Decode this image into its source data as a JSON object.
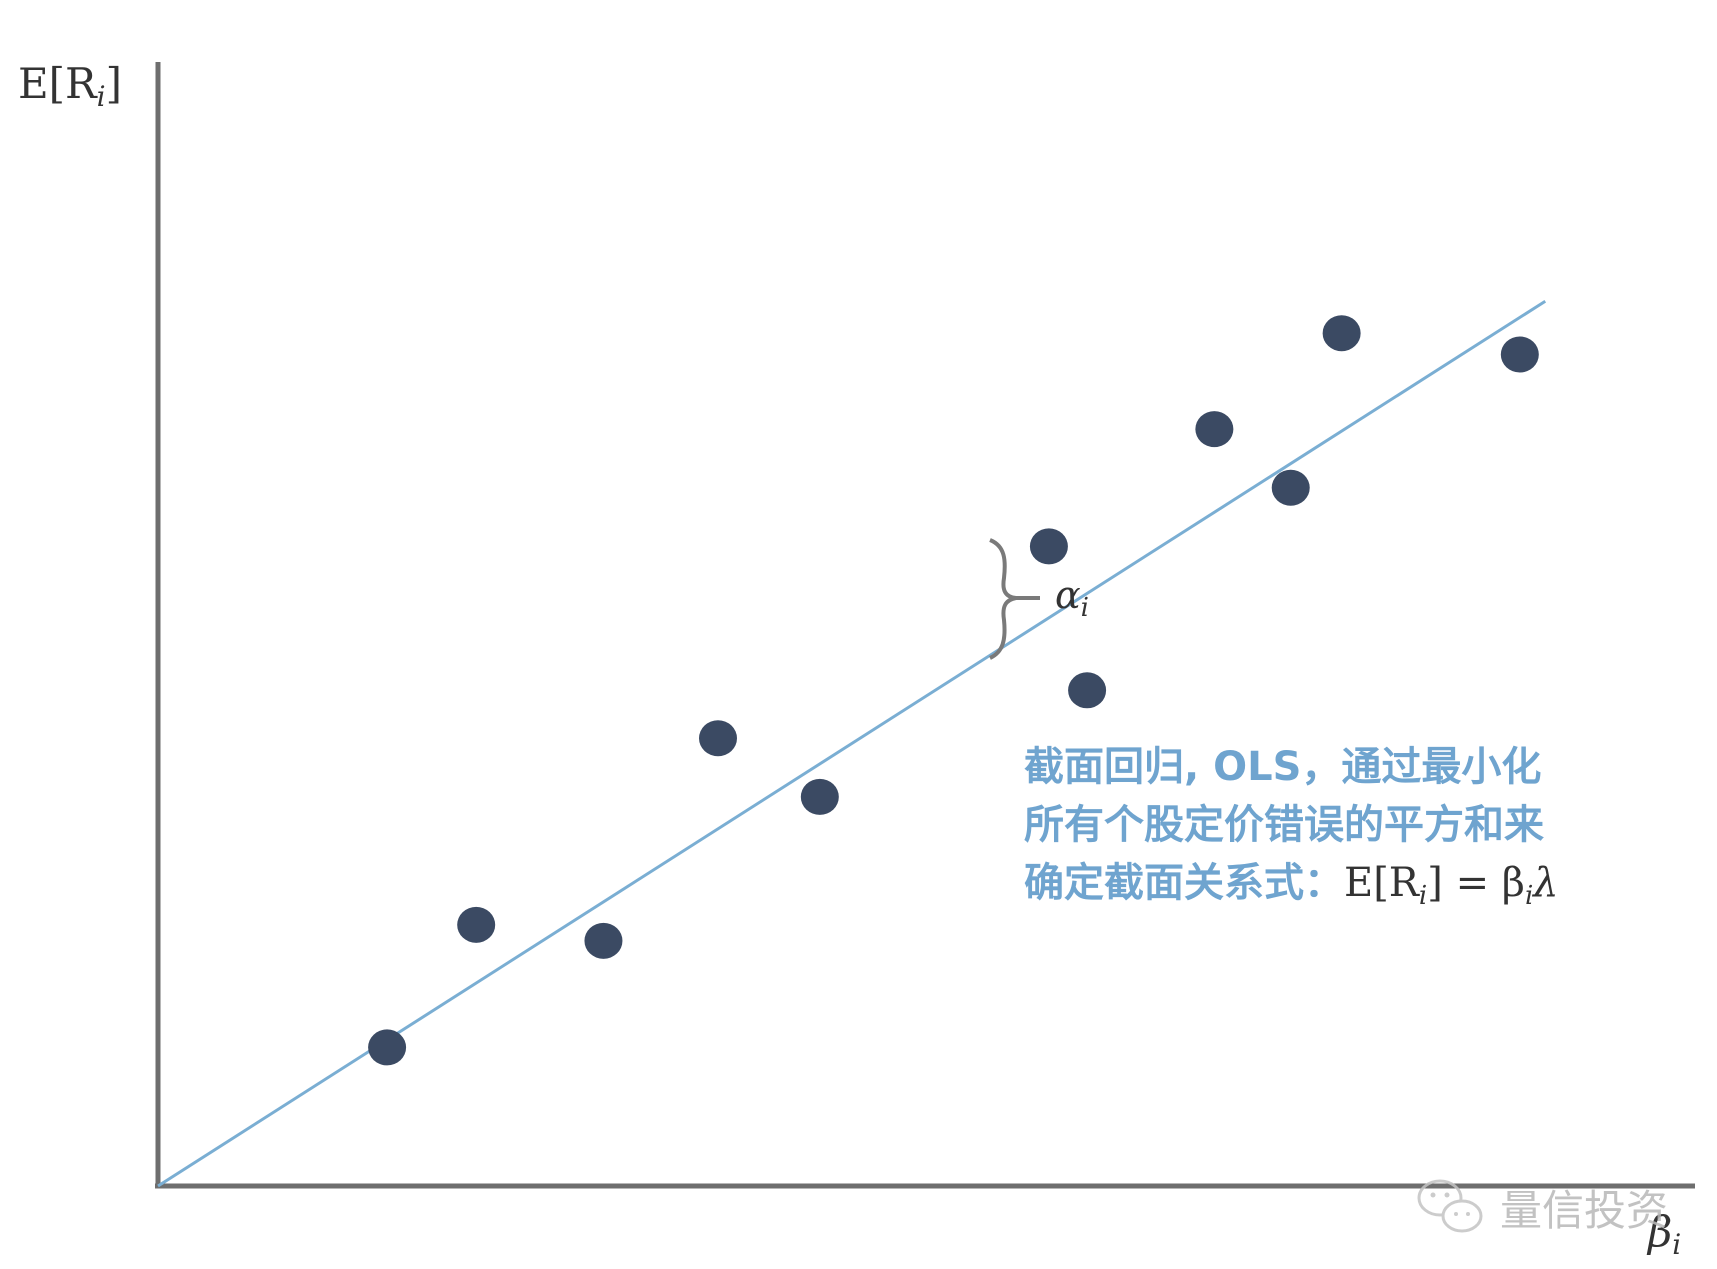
{
  "diagram": {
    "y_axis_label": "E[R",
    "y_axis_label_sub": "i",
    "y_axis_label_close": "]",
    "x_axis_label": "β",
    "x_axis_label_sub": "i",
    "alpha_label": "α",
    "alpha_label_sub": "i",
    "annotation_line1": "截面回归, OLS，通过最小化",
    "annotation_line2": "所有个股定价错误的平方和来",
    "annotation_line3": "确定截面关系式：",
    "equation_lhs": "E[R",
    "equation_sub_i": "i",
    "equation_mid": "] = β",
    "equation_rhs": "λ",
    "watermark": "量信投资",
    "colors": {
      "points": "#3b4a63",
      "regression_line": "#7aaed3",
      "axes": "#6e6e6e",
      "annotation": "#6fa4cf"
    }
  },
  "chart_data": {
    "type": "scatter",
    "note_units": "unitless axes (no ticks shown)",
    "x_axis": "β_i",
    "y_axis": "E[R_i]",
    "xlim": [
      0,
      1.1
    ],
    "ylim": [
      0,
      1.0
    ],
    "points": [
      {
        "x": 0.18,
        "y": 0.13
      },
      {
        "x": 0.25,
        "y": 0.245
      },
      {
        "x": 0.35,
        "y": 0.23
      },
      {
        "x": 0.44,
        "y": 0.42
      },
      {
        "x": 0.52,
        "y": 0.365
      },
      {
        "x": 0.7,
        "y": 0.6
      },
      {
        "x": 0.73,
        "y": 0.465
      },
      {
        "x": 0.83,
        "y": 0.71
      },
      {
        "x": 0.89,
        "y": 0.655
      },
      {
        "x": 0.93,
        "y": 0.8
      },
      {
        "x": 1.07,
        "y": 0.78
      }
    ],
    "regression_line": {
      "x": [
        0.0,
        1.09
      ],
      "y": [
        0.0,
        0.83
      ]
    },
    "residual_highlight_point_index": 6
  }
}
